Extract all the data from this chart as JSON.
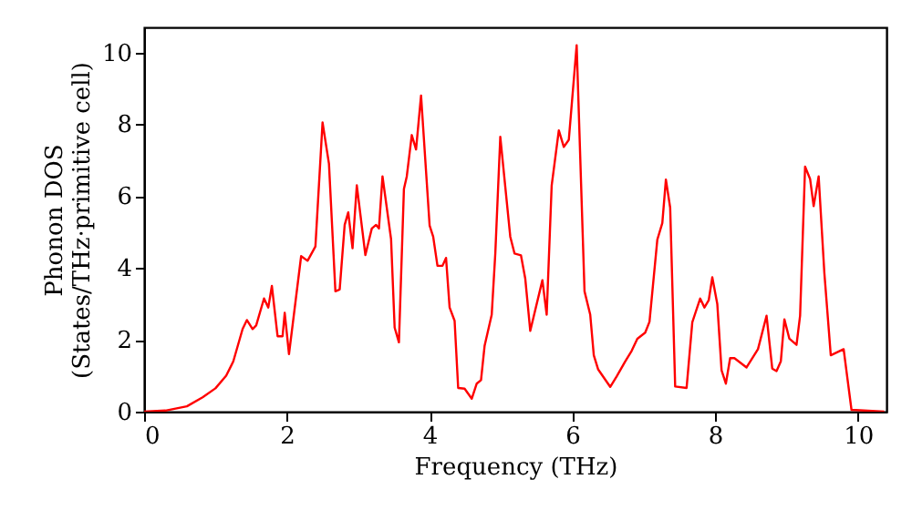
{
  "chart_data": {
    "type": "line",
    "xlabel": "Frequency (THz)",
    "ylabel": "Phonon DOS\n(States/THz·primitive cell)",
    "x": [
      0,
      0.3,
      0.6,
      0.82,
      1.0,
      1.15,
      1.25,
      1.38,
      1.44,
      1.52,
      1.57,
      1.68,
      1.74,
      1.79,
      1.87,
      1.94,
      1.97,
      2.03,
      2.2,
      2.29,
      2.4,
      2.5,
      2.59,
      2.68,
      2.74,
      2.81,
      2.86,
      2.92,
      2.98,
      3.1,
      3.19,
      3.25,
      3.29,
      3.34,
      3.46,
      3.51,
      3.57,
      3.64,
      3.68,
      3.75,
      3.81,
      3.88,
      4.0,
      4.05,
      4.11,
      4.18,
      4.23,
      4.28,
      4.35,
      4.4,
      4.49,
      4.59,
      4.66,
      4.72,
      4.77,
      4.87,
      4.92,
      4.99,
      5.13,
      5.19,
      5.28,
      5.34,
      5.41,
      5.58,
      5.64,
      5.71,
      5.81,
      5.88,
      5.95,
      6.06,
      6.17,
      6.25,
      6.3,
      6.36,
      6.53,
      6.62,
      6.74,
      6.83,
      6.91,
      7.02,
      7.08,
      7.19,
      7.26,
      7.31,
      7.37,
      7.44,
      7.6,
      7.68,
      7.79,
      7.85,
      7.91,
      7.96,
      8.03,
      8.09,
      8.15,
      8.21,
      8.27,
      8.44,
      8.6,
      8.72,
      8.8,
      8.86,
      8.92,
      8.97,
      9.04,
      9.14,
      9.19,
      9.26,
      9.33,
      9.38,
      9.45,
      9.53,
      9.62,
      9.8,
      9.91,
      10.37
    ],
    "series": [
      {
        "color": "#ff0000",
        "values": [
          0,
          0.03,
          0.15,
          0.4,
          0.65,
          1.0,
          1.4,
          2.3,
          2.55,
          2.3,
          2.4,
          3.15,
          2.9,
          3.5,
          2.1,
          2.1,
          2.75,
          1.6,
          4.33,
          4.2,
          4.6,
          8.05,
          6.9,
          3.35,
          3.4,
          5.2,
          5.55,
          4.55,
          6.3,
          4.36,
          5.1,
          5.2,
          5.1,
          6.55,
          4.8,
          2.34,
          1.93,
          6.2,
          6.55,
          7.7,
          7.3,
          8.8,
          5.18,
          4.87,
          4.06,
          4.06,
          4.28,
          2.9,
          2.53,
          0.66,
          0.64,
          0.36,
          0.78,
          0.88,
          1.83,
          2.7,
          4.4,
          7.65,
          4.87,
          4.4,
          4.35,
          3.7,
          2.25,
          3.66,
          2.7,
          6.3,
          7.83,
          7.37,
          7.57,
          10.2,
          3.35,
          2.7,
          1.57,
          1.18,
          0.69,
          0.98,
          1.4,
          1.69,
          2.03,
          2.2,
          2.5,
          4.79,
          5.25,
          6.46,
          5.68,
          0.7,
          0.66,
          2.49,
          3.15,
          2.9,
          3.1,
          3.74,
          3.0,
          1.15,
          0.78,
          1.49,
          1.49,
          1.23,
          1.74,
          2.67,
          1.2,
          1.13,
          1.4,
          2.57,
          2.03,
          1.86,
          2.67,
          6.82,
          6.48,
          5.72,
          6.55,
          3.86,
          1.57,
          1.74,
          0.05,
          0
        ]
      }
    ],
    "xlim": [
      0,
      10.4
    ],
    "ylim": [
      0,
      10.7
    ],
    "xticks": [
      0,
      2,
      4,
      6,
      8,
      10
    ],
    "yticks": [
      0,
      2,
      4,
      6,
      8,
      10
    ],
    "grid": false
  }
}
